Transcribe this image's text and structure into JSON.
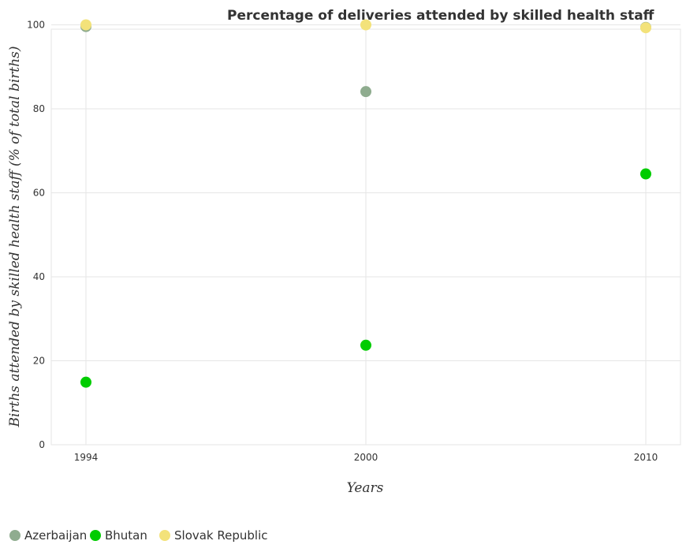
{
  "chart_data": {
    "type": "scatter",
    "title": "Percentage of deliveries attended by skilled health staff",
    "xlabel": "Years",
    "ylabel": "Births attended by skilled health staff (% of total births)",
    "categories": [
      "1994",
      "2000",
      "2010"
    ],
    "ylim": [
      0,
      105
    ],
    "yticks": [
      0,
      20,
      40,
      60,
      80,
      100
    ],
    "grid": true,
    "legend_position": "bottom-left",
    "series": [
      {
        "name": "Azerbaijan",
        "color": "#8fac8f",
        "values": [
          99.6,
          84.1,
          99.4
        ]
      },
      {
        "name": "Bhutan",
        "color": "#00cc00",
        "values": [
          14.9,
          23.7,
          64.5
        ]
      },
      {
        "name": "Slovak Republic",
        "color": "#f3e27a",
        "values": [
          100.0,
          100.0,
          99.3
        ]
      }
    ]
  }
}
